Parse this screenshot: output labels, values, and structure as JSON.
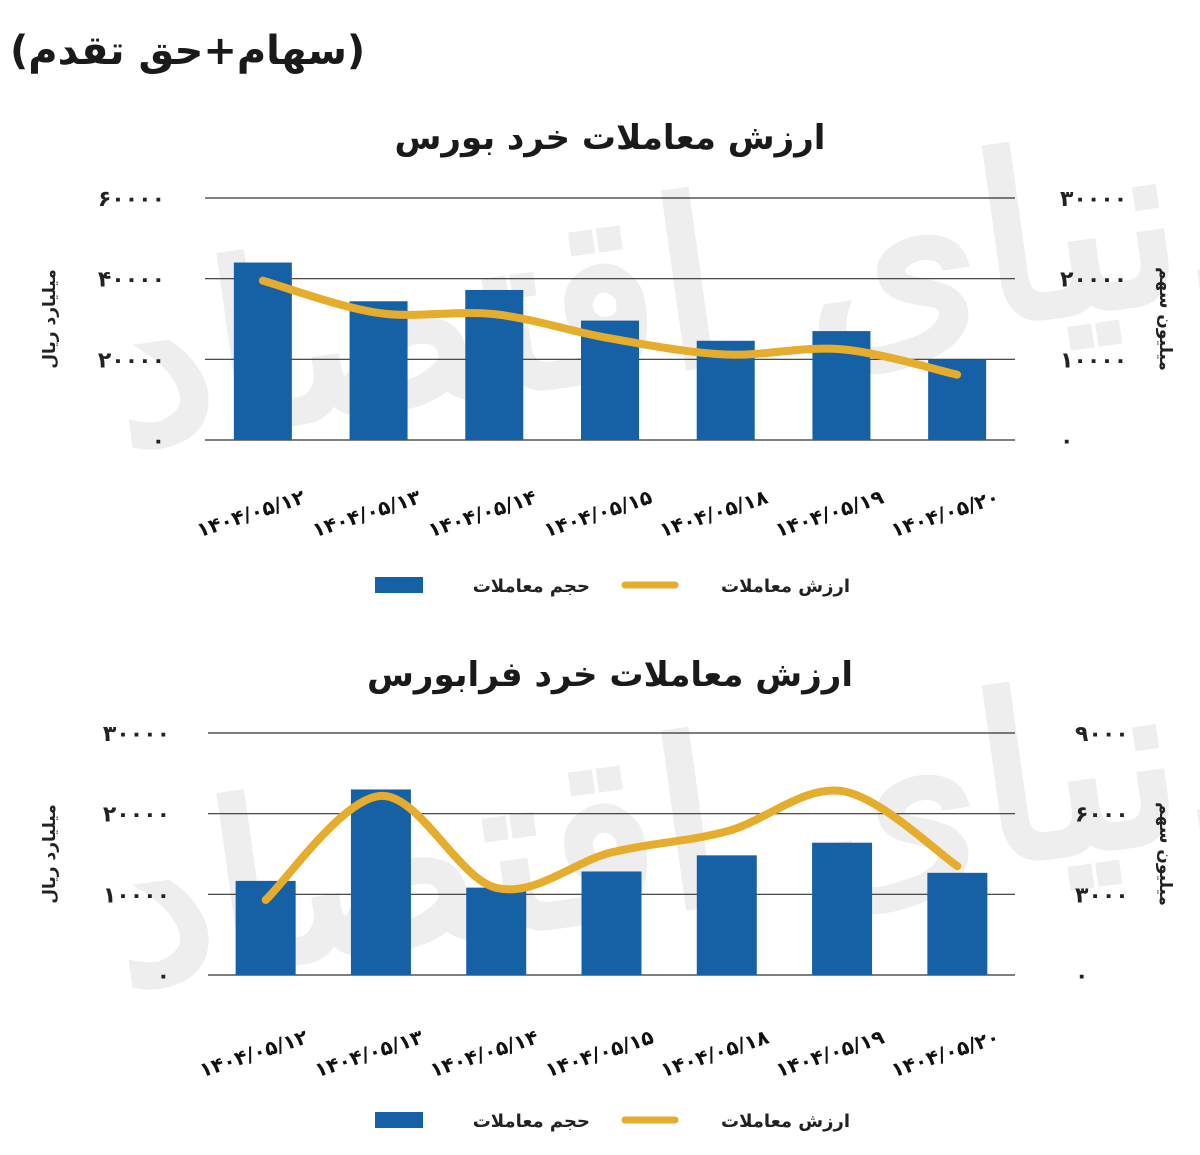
{
  "page": {
    "subtitle": "(سهام+حق تقدم)",
    "watermark": "دنیای اقتصاد"
  },
  "colors": {
    "bar": "#1660a6",
    "line": "#e6ac2c",
    "grid": "#333333"
  },
  "chart_data": [
    {
      "type": "bar",
      "title": "ارزش معاملات خرد بورس",
      "categories": [
        "۱۴۰۴/۰۵/۱۲",
        "۱۴۰۴/۰۵/۱۳",
        "۱۴۰۴/۰۵/۱۴",
        "۱۴۰۴/۰۵/۱۵",
        "۱۴۰۴/۰۵/۱۸",
        "۱۴۰۴/۰۵/۱۹",
        "۱۴۰۴/۰۵/۲۰"
      ],
      "series": [
        {
          "name": "حجم معاملات",
          "type": "bar",
          "axis": "right",
          "values": [
            22000,
            17200,
            18600,
            14800,
            12300,
            13500,
            10000
          ]
        },
        {
          "name": "ارزش معاملات",
          "type": "line",
          "axis": "left",
          "values": [
            39500,
            31500,
            31200,
            25200,
            21200,
            22500,
            16200
          ]
        }
      ],
      "ylim_left": [
        0,
        60000
      ],
      "ylim_right": [
        0,
        30000
      ],
      "yticks_left": [
        "۰",
        "۲۰۰۰۰",
        "۴۰۰۰۰",
        "۶۰۰۰۰"
      ],
      "yticks_right": [
        "۰",
        "۱۰۰۰۰",
        "۲۰۰۰۰",
        "۳۰۰۰۰"
      ],
      "ylabel_left": "میلیارد ریال",
      "ylabel_right": "میلیون سهم",
      "legend": [
        "حجم معاملات",
        "ارزش معاملات"
      ],
      "legend_position": "bottom",
      "grid": true
    },
    {
      "type": "bar",
      "title": "ارزش معاملات خرد فرابورس",
      "categories": [
        "۱۴۰۴/۰۵/۱۲",
        "۱۴۰۴/۰۵/۱۳",
        "۱۴۰۴/۰۵/۱۴",
        "۱۴۰۴/۰۵/۱۵",
        "۱۴۰۴/۰۵/۱۸",
        "۱۴۰۴/۰۵/۱۹",
        "۱۴۰۴/۰۵/۲۰"
      ],
      "series": [
        {
          "name": "حجم معاملات",
          "type": "bar",
          "axis": "right",
          "values": [
            3500,
            6900,
            3250,
            3850,
            4450,
            4920,
            3800
          ]
        },
        {
          "name": "ارزش معاملات",
          "type": "line",
          "axis": "left",
          "values": [
            9300,
            22200,
            10800,
            15200,
            17800,
            22800,
            13500
          ]
        }
      ],
      "ylim_left": [
        0,
        30000
      ],
      "ylim_right": [
        0,
        9000
      ],
      "yticks_left": [
        "۰",
        "۱۰۰۰۰",
        "۲۰۰۰۰",
        "۳۰۰۰۰"
      ],
      "yticks_right": [
        "۰",
        "۳۰۰۰",
        "۶۰۰۰",
        "۹۰۰۰"
      ],
      "ylabel_left": "میلیارد ریال",
      "ylabel_right": "میلیون سهم",
      "legend": [
        "حجم معاملات",
        "ارزش معاملات"
      ],
      "legend_position": "bottom",
      "grid": true
    }
  ]
}
